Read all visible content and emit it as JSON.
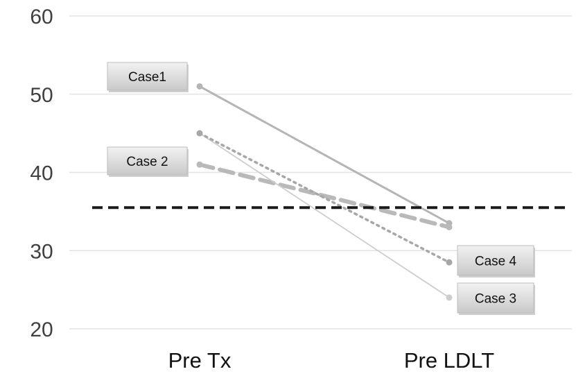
{
  "chart_data": {
    "type": "line",
    "title": "",
    "xlabel": "",
    "ylabel": "",
    "categories": [
      "Pre Tx",
      "Pre LDLT"
    ],
    "ylim": [
      20,
      60
    ],
    "yticks": [
      20,
      30,
      40,
      50,
      60
    ],
    "grid": true,
    "series": [
      {
        "name": "Case1",
        "values": [
          51,
          33.5
        ],
        "style": "solid",
        "color": "#b5b5b5"
      },
      {
        "name": "Case 2",
        "values": [
          41,
          33
        ],
        "style": "dashed-thick",
        "color": "#b9b9b9"
      },
      {
        "name": "Case 3",
        "values": [
          45,
          24
        ],
        "style": "solid-thin",
        "color": "#cdcdcd"
      },
      {
        "name": "Case 4",
        "values": [
          45,
          28.5
        ],
        "style": "dotted",
        "color": "#a7a7a7"
      }
    ],
    "reference_line": {
      "value": 35.5,
      "style": "dashed",
      "color": "#1a1a1a"
    },
    "annotations": [
      "Case1",
      "Case 2",
      "Case 4",
      "Case 3"
    ]
  }
}
